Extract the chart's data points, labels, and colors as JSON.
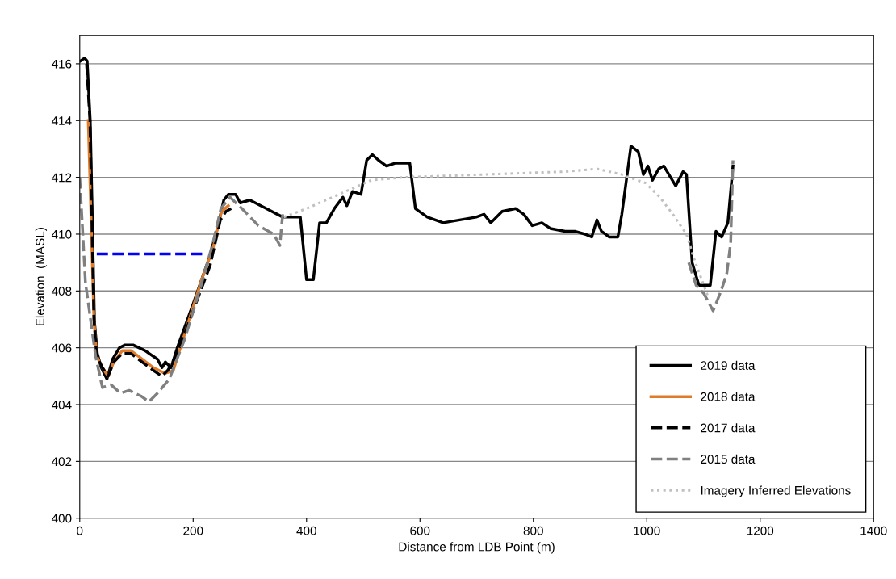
{
  "chart_data": {
    "type": "line",
    "xlabel": "Distance from LDB Point (m)",
    "ylabel": "Elevation  (MASL)",
    "xlim": [
      0,
      1400
    ],
    "xticks": [
      0,
      200,
      400,
      600,
      800,
      1000,
      1200,
      1400
    ],
    "ylim": [
      400,
      417
    ],
    "yticks": [
      400,
      402,
      404,
      406,
      408,
      410,
      412,
      414,
      416
    ],
    "grid": "y",
    "legend": "bottom right",
    "marker": "none",
    "series": [
      {
        "name": "2019 data",
        "color": "#000000",
        "line_style": "solid",
        "x": [
          1.4,
          8.5,
          13,
          18.5,
          26,
          31,
          38,
          48,
          58,
          70,
          80,
          94,
          115,
          137,
          145,
          151,
          161,
          172,
          201,
          229,
          244,
          254,
          262,
          275,
          283,
          300,
          329,
          358,
          372,
          389,
          400,
          412,
          423,
          435,
          449,
          464,
          471,
          481,
          496,
          506,
          516,
          527,
          541,
          556,
          582,
          592,
          613,
          641,
          670,
          699,
          713,
          725,
          745,
          769,
          783,
          798,
          815,
          830,
          856,
          873,
          891,
          903,
          912,
          920,
          934,
          949,
          956,
          972,
          985,
          994,
          1002,
          1010,
          1021,
          1030,
          1051,
          1064,
          1070,
          1080,
          1092,
          1112,
          1122,
          1132,
          1143,
          1152
        ],
        "values": [
          416.1,
          416.2,
          416.1,
          414,
          406.9,
          405.8,
          405.3,
          404.9,
          405.6,
          406.0,
          406.1,
          406.1,
          405.9,
          405.6,
          405.3,
          405.5,
          405.3,
          406.0,
          407.6,
          409.2,
          410.3,
          411.2,
          411.4,
          411.4,
          411.1,
          411.2,
          410.9,
          410.6,
          410.6,
          410.6,
          408.4,
          408.4,
          410.4,
          410.4,
          410.9,
          411.3,
          411.0,
          411.5,
          411.4,
          412.6,
          412.8,
          412.6,
          412.4,
          412.5,
          412.5,
          410.9,
          410.6,
          410.4,
          410.5,
          410.6,
          410.7,
          410.4,
          410.8,
          410.9,
          410.7,
          410.3,
          410.4,
          410.2,
          410.1,
          410.1,
          410.0,
          409.9,
          410.5,
          410.1,
          409.9,
          409.9,
          410.7,
          413.1,
          412.9,
          412.1,
          412.4,
          411.9,
          412.3,
          412.4,
          411.7,
          412.2,
          412.1,
          409.0,
          408.2,
          408.2,
          410.1,
          409.9,
          410.4,
          412.4
        ]
      },
      {
        "name": "2018 data",
        "color": "#e07b2a",
        "line_style": "solid",
        "x": [
          15,
          25,
          30,
          40,
          50,
          60,
          75,
          90,
          110,
          130,
          150,
          165,
          190,
          215,
          235,
          250,
          262
        ],
        "values": [
          414,
          407,
          405.7,
          405.3,
          405.0,
          405.5,
          405.9,
          405.9,
          405.6,
          405.3,
          405.1,
          405.2,
          406.8,
          408.4,
          409.5,
          410.8,
          411.0
        ]
      },
      {
        "name": "2017 data",
        "color": "#000000",
        "line_style": "dashed",
        "x": [
          12,
          18,
          25,
          30,
          40,
          50,
          60,
          75,
          90,
          110,
          130,
          145,
          155,
          170,
          200,
          230,
          248,
          258,
          267
        ],
        "values": [
          416.0,
          414,
          407,
          405.7,
          405.3,
          405.0,
          405.5,
          405.8,
          405.8,
          405.5,
          405.2,
          405.0,
          405.2,
          405.7,
          407.3,
          408.9,
          410.5,
          410.8,
          410.9
        ]
      },
      {
        "name": "2015 data",
        "color": "#808080",
        "line_style": "dashed",
        "x": [
          0,
          10,
          28,
          40,
          55,
          72,
          87,
          108,
          122,
          137,
          158,
          185,
          214,
          235,
          249,
          265,
          286,
          315,
          342,
          353,
          356,
          358,
          700,
          1074,
          1087,
          1101,
          1117,
          1131,
          1141,
          1148,
          1152
        ],
        "values": [
          412,
          408.3,
          405.7,
          404.6,
          404.7,
          404.4,
          404.5,
          404.3,
          404.1,
          404.4,
          404.9,
          406.3,
          408.2,
          409.7,
          410.9,
          411.3,
          410.9,
          410.3,
          410.0,
          409.6,
          410.3,
          410.7,
          null,
          409.0,
          408.2,
          407.9,
          407.3,
          408.0,
          408.6,
          409.7,
          412.6
        ]
      },
      {
        "name": "Imagery Inferred Elevations",
        "color": "#c0c0c0",
        "line_style": "dotted",
        "x": [
          360,
          400,
          457,
          514,
          571,
          713,
          856,
          912,
          956,
          968,
          998,
          1023,
          1046,
          1070,
          1084,
          1108
        ],
        "values": [
          410.6,
          410.9,
          411.4,
          411.9,
          412.0,
          412.1,
          412.2,
          412.3,
          412.1,
          412.0,
          411.8,
          411.3,
          410.7,
          410.0,
          409.1,
          407.8
        ]
      },
      {
        "color": "#0000ff",
        "line_style": "dashed",
        "x": [
          30,
          220
        ],
        "values": [
          409.3,
          409.3
        ]
      }
    ]
  }
}
